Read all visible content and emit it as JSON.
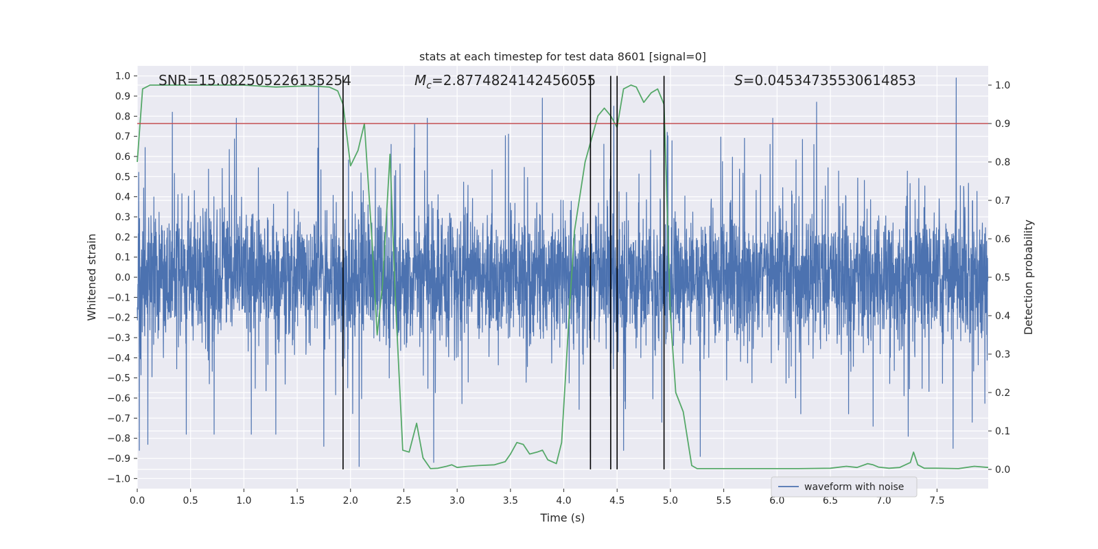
{
  "chart_data": {
    "type": "line",
    "title": "stats at each timestep for test data 8601 [signal=0]",
    "xlabel": "Time (s)",
    "ylabel": "Whitened strain",
    "y2label": "Detection probability",
    "xlim": [
      0.0,
      7.98
    ],
    "ylim": [
      -1.05,
      1.05
    ],
    "y2lim": [
      -0.05,
      1.05
    ],
    "xticks": [
      0.0,
      0.5,
      1.0,
      1.5,
      2.0,
      2.5,
      3.0,
      3.5,
      4.0,
      4.5,
      5.0,
      5.5,
      6.0,
      6.5,
      7.0,
      7.5
    ],
    "xtick_labels": [
      "0.0",
      "0.5",
      "1.0",
      "1.5",
      "2.0",
      "2.5",
      "3.0",
      "3.5",
      "4.0",
      "4.5",
      "5.0",
      "5.5",
      "6.0",
      "6.5",
      "7.0",
      "7.5"
    ],
    "yticks": [
      1.0,
      0.9,
      0.8,
      0.7,
      0.6,
      0.5,
      0.4,
      0.3,
      0.2,
      0.1,
      0.0,
      -0.1,
      -0.2,
      -0.3,
      -0.4,
      -0.5,
      -0.6,
      -0.7,
      -0.8,
      -0.9,
      -1.0
    ],
    "ytick_labels": [
      "1.0",
      "0.9",
      "0.8",
      "0.7",
      "0.6",
      "0.5",
      "0.4",
      "0.3",
      "0.2",
      "0.1",
      "0.0",
      "−0.1",
      "−0.2",
      "−0.3",
      "−0.4",
      "−0.5",
      "−0.6",
      "−0.7",
      "−0.8",
      "−0.9",
      "−1.0"
    ],
    "y2ticks": [
      0.0,
      0.1,
      0.2,
      0.3,
      0.4,
      0.5,
      0.6,
      0.7,
      0.8,
      0.9,
      1.0
    ],
    "y2tick_labels": [
      "0.0",
      "0.1",
      "0.2",
      "0.3",
      "0.4",
      "0.5",
      "0.6",
      "0.7",
      "0.8",
      "0.9",
      "1.0"
    ],
    "annotations": {
      "snr": "SNR=15.082505226135254",
      "mc_symbol": "M",
      "mc_sub": "c",
      "mc_value": "=2.8774824142456055",
      "s_symbol": "S",
      "s_value": "=0.04534735530614853"
    },
    "legend": {
      "label": "waveform with noise",
      "position": "lower-right"
    },
    "threshold": {
      "value": 0.9,
      "axis": "y2",
      "color": "#c44e52"
    },
    "vlines": [
      1.93,
      4.25,
      4.44,
      4.5,
      4.94
    ],
    "colors": {
      "waveform": "#4c72b0",
      "probability": "#55a868",
      "threshold": "#c44e52",
      "vline": "#000000",
      "background": "#eaeaf2",
      "grid": "#ffffff"
    },
    "waveform": {
      "name": "waveform with noise",
      "samples": 4096,
      "duration": 7.98,
      "seed": 8601,
      "typical_min": -0.35,
      "typical_max": 0.4,
      "spikes": [
        {
          "x": 0.02,
          "y": -0.86
        },
        {
          "x": 0.1,
          "y": -0.83
        },
        {
          "x": 0.33,
          "y": 0.82
        },
        {
          "x": 0.46,
          "y": -0.78
        },
        {
          "x": 0.72,
          "y": -0.78
        },
        {
          "x": 0.93,
          "y": 0.79
        },
        {
          "x": 1.07,
          "y": -0.78
        },
        {
          "x": 1.3,
          "y": -0.78
        },
        {
          "x": 1.7,
          "y": 0.98
        },
        {
          "x": 1.75,
          "y": -0.84
        },
        {
          "x": 2.08,
          "y": -0.94
        },
        {
          "x": 2.38,
          "y": 0.66
        },
        {
          "x": 2.6,
          "y": 0.76
        },
        {
          "x": 2.72,
          "y": 0.79
        },
        {
          "x": 2.78,
          "y": -0.92
        },
        {
          "x": 3.8,
          "y": 0.89
        },
        {
          "x": 4.25,
          "y": -0.87
        },
        {
          "x": 4.47,
          "y": 0.85
        },
        {
          "x": 4.56,
          "y": -0.86
        },
        {
          "x": 4.92,
          "y": -0.72
        },
        {
          "x": 4.97,
          "y": 0.72
        },
        {
          "x": 5.28,
          "y": -0.89
        },
        {
          "x": 5.96,
          "y": 0.79
        },
        {
          "x": 6.37,
          "y": 0.87
        },
        {
          "x": 6.9,
          "y": -0.74
        },
        {
          "x": 7.23,
          "y": -0.79
        },
        {
          "x": 7.65,
          "y": -0.85
        },
        {
          "x": 7.68,
          "y": 0.99
        },
        {
          "x": 7.83,
          "y": -0.72
        }
      ]
    },
    "probability": {
      "name": "detection probability",
      "points": [
        [
          0.0,
          0.8
        ],
        [
          0.05,
          0.99
        ],
        [
          0.12,
          1.0
        ],
        [
          0.5,
          1.0
        ],
        [
          1.0,
          1.0
        ],
        [
          1.3,
          0.995
        ],
        [
          1.6,
          0.998
        ],
        [
          1.8,
          0.995
        ],
        [
          1.88,
          0.985
        ],
        [
          1.93,
          0.95
        ],
        [
          2.0,
          0.79
        ],
        [
          2.07,
          0.83
        ],
        [
          2.13,
          0.9
        ],
        [
          2.2,
          0.6
        ],
        [
          2.25,
          0.35
        ],
        [
          2.3,
          0.48
        ],
        [
          2.37,
          0.82
        ],
        [
          2.42,
          0.45
        ],
        [
          2.49,
          0.05
        ],
        [
          2.55,
          0.045
        ],
        [
          2.62,
          0.12
        ],
        [
          2.68,
          0.03
        ],
        [
          2.75,
          0.002
        ],
        [
          2.82,
          0.003
        ],
        [
          2.9,
          0.008
        ],
        [
          2.95,
          0.012
        ],
        [
          3.0,
          0.005
        ],
        [
          3.1,
          0.008
        ],
        [
          3.2,
          0.01
        ],
        [
          3.35,
          0.012
        ],
        [
          3.45,
          0.02
        ],
        [
          3.5,
          0.04
        ],
        [
          3.56,
          0.07
        ],
        [
          3.62,
          0.065
        ],
        [
          3.68,
          0.04
        ],
        [
          3.75,
          0.045
        ],
        [
          3.8,
          0.05
        ],
        [
          3.85,
          0.025
        ],
        [
          3.93,
          0.015
        ],
        [
          3.98,
          0.07
        ],
        [
          4.05,
          0.4
        ],
        [
          4.1,
          0.62
        ],
        [
          4.2,
          0.8
        ],
        [
          4.25,
          0.85
        ],
        [
          4.32,
          0.92
        ],
        [
          4.38,
          0.94
        ],
        [
          4.44,
          0.92
        ],
        [
          4.5,
          0.89
        ],
        [
          4.56,
          0.99
        ],
        [
          4.63,
          1.0
        ],
        [
          4.68,
          0.995
        ],
        [
          4.75,
          0.955
        ],
        [
          4.82,
          0.98
        ],
        [
          4.88,
          0.99
        ],
        [
          4.94,
          0.95
        ],
        [
          5.0,
          0.4
        ],
        [
          5.05,
          0.2
        ],
        [
          5.12,
          0.15
        ],
        [
          5.2,
          0.01
        ],
        [
          5.25,
          0.002
        ],
        [
          5.5,
          0.002
        ],
        [
          6.0,
          0.002
        ],
        [
          6.2,
          0.002
        ],
        [
          6.5,
          0.003
        ],
        [
          6.65,
          0.008
        ],
        [
          6.75,
          0.005
        ],
        [
          6.85,
          0.015
        ],
        [
          6.9,
          0.012
        ],
        [
          6.95,
          0.006
        ],
        [
          7.05,
          0.003
        ],
        [
          7.15,
          0.005
        ],
        [
          7.25,
          0.018
        ],
        [
          7.28,
          0.045
        ],
        [
          7.32,
          0.012
        ],
        [
          7.38,
          0.003
        ],
        [
          7.5,
          0.003
        ],
        [
          7.7,
          0.002
        ],
        [
          7.85,
          0.008
        ],
        [
          7.98,
          0.005
        ]
      ]
    }
  }
}
